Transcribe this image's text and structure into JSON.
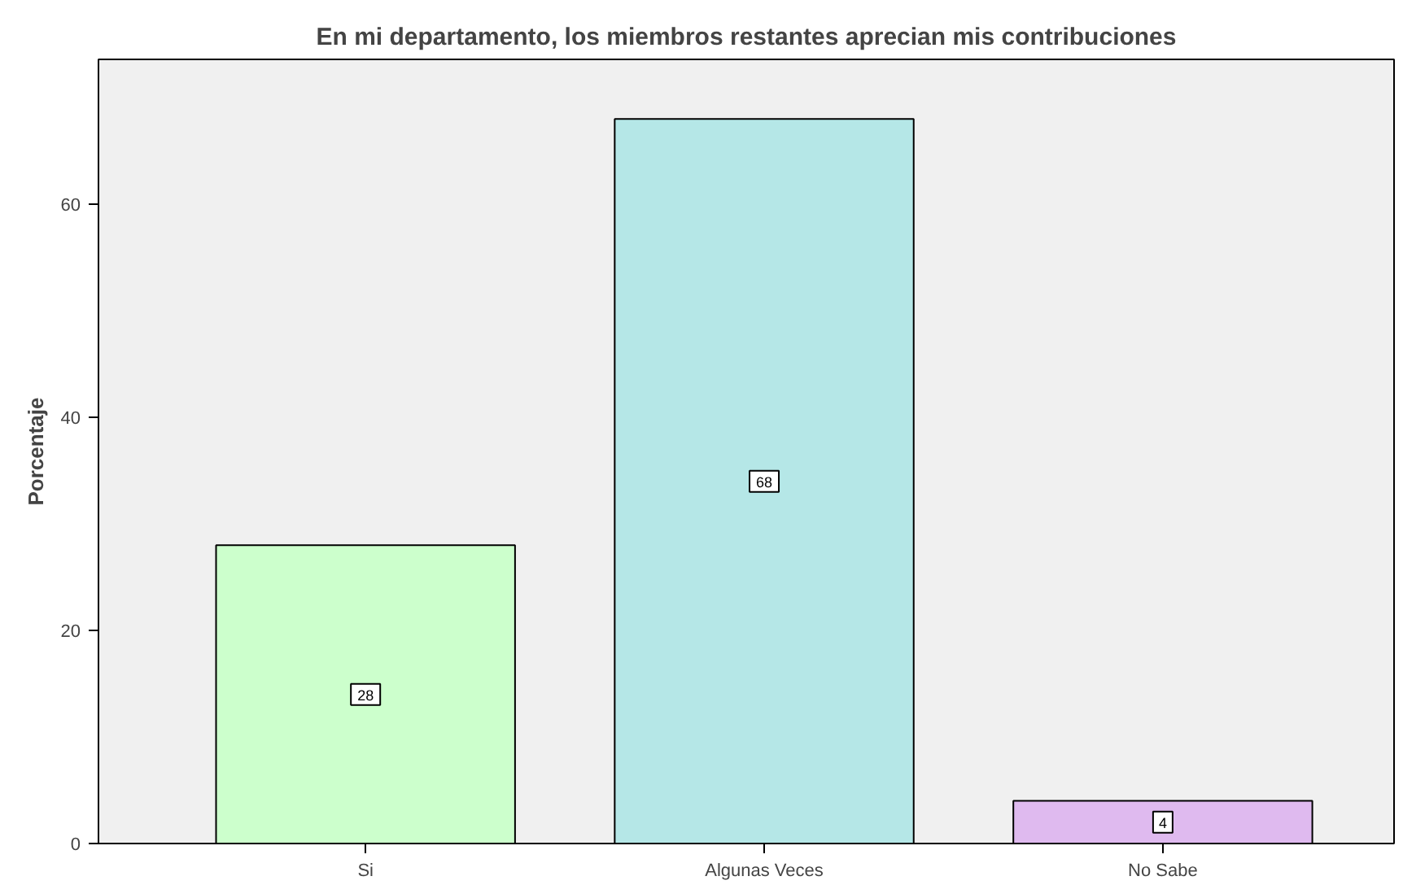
{
  "chart_data": {
    "type": "bar",
    "title": "En mi departamento, los miembros restantes aprecian mis contribuciones",
    "ylabel": "Porcentaje",
    "categories": [
      "Si",
      "Algunas Veces",
      "No Sabe"
    ],
    "values": [
      28,
      68,
      4
    ],
    "colors": [
      "#ccffcc",
      "#b5e7e7",
      "#dfbaef"
    ],
    "ylim": [
      0,
      73.6
    ],
    "yticks": [
      0,
      20,
      40,
      60
    ],
    "grid": false,
    "data_labels": true
  }
}
